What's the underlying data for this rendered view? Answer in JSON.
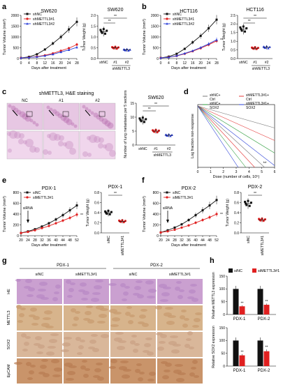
{
  "colors": {
    "black": "#111111",
    "red": "#e02020",
    "blue": "#2a3fd8",
    "heRow": "#b07ab8",
    "ihcRow": "#b0743c"
  },
  "panels": {
    "a": {
      "letter": "a",
      "title_line": "SW620",
      "title_bar": "SW620",
      "ylabel_line": "Tumor Volume (mm³)",
      "ylabel_bar": "Tumor Weight (g)",
      "xlabel": "Days after treatment",
      "xticks": [
        "0",
        "4",
        "8",
        "12",
        "16",
        "20",
        "24",
        "28"
      ],
      "yticks": [
        "0",
        "500",
        "1000",
        "1500",
        "2000"
      ],
      "bar_yticks": [
        "0.0",
        "0.5",
        "1.0",
        "1.5",
        "2.0"
      ],
      "legend": [
        "shNC",
        "shMETTL3#1",
        "shMETTL3#2"
      ],
      "bar_cats": [
        "shNC",
        "#1",
        "#2"
      ],
      "bar_group": "shMETTL3",
      "sig": "**"
    },
    "b": {
      "letter": "b",
      "title_line": "HCT116",
      "title_bar": "HCT116",
      "ylabel_line": "Tumor Volume (mm³)",
      "ylabel_bar": "Tumor Weight (g)",
      "xlabel": "Days after treatment",
      "xticks": [
        "0",
        "4",
        "8",
        "12",
        "16",
        "20",
        "24",
        "28"
      ],
      "yticks": [
        "0",
        "500",
        "1000",
        "1500",
        "2000"
      ],
      "bar_yticks": [
        "0.0",
        "0.5",
        "1.0",
        "1.5",
        "2.0",
        "2.5"
      ],
      "legend": [
        "shNC",
        "shMETTL3#1",
        "shMETTL3#2"
      ],
      "bar_cats": [
        "shNC",
        "#1",
        "#2"
      ],
      "bar_group": "shMETTL3",
      "sig": "**"
    },
    "c": {
      "letter": "c",
      "title": "shMETTL3, H&E staining",
      "cols": [
        "NC",
        "#1",
        "#2"
      ],
      "title_bar": "SW620",
      "ylabel": "Number of lung metastases per 5 sections",
      "bar_yticks": [
        "0",
        "5",
        "10",
        "15"
      ],
      "bar_cats": [
        "shNC",
        "#1",
        "#2"
      ],
      "bar_group": "shMETTL3",
      "sig": "**"
    },
    "d": {
      "letter": "d",
      "legend": [
        "shNC+ Ctrl",
        "shMETTL3#1+ Ctrl",
        "shNC+ SOX2",
        "shMETTL3#1+ SOX2"
      ],
      "ylabel": "Log fraction non-response",
      "xlabel": "Dose (number of cells, 10⁵)",
      "xticks": [
        "0",
        "1",
        "2",
        "3",
        "4",
        "5",
        "6"
      ],
      "sig": "**"
    },
    "e": {
      "letter": "e",
      "title_line": "PDX-1",
      "title_bar": "PDX-1",
      "legend": [
        "siNC",
        "siMETTL3#1"
      ],
      "ylabel_line": "Tumor Volume (mm³)",
      "ylabel_bar": "Tumor Weight (g)",
      "xlabel": "Days after treatment",
      "xticks": [
        "20",
        "24",
        "28",
        "32",
        "36",
        "40",
        "44",
        "48",
        "52"
      ],
      "yticks": [
        "0",
        "200",
        "400",
        "600",
        "800"
      ],
      "bar_yticks": [
        "0.0",
        "0.2",
        "0.4",
        "0.6",
        "0.8"
      ],
      "arrow": "siRNA",
      "bar_cats": [
        "siNC",
        "siMETTL3#1"
      ],
      "sig": "**"
    },
    "f": {
      "letter": "f",
      "title_line": "PDX-2",
      "title_bar": "PDX-2",
      "legend": [
        "siNC",
        "siMETTL3#1"
      ],
      "ylabel_line": "Tumor Volume (mm³)",
      "ylabel_bar": "Tumor Weight (g)",
      "xlabel": "Days after treatment",
      "xticks": [
        "20",
        "24",
        "28",
        "32",
        "36",
        "40",
        "44",
        "48",
        "52"
      ],
      "yticks": [
        "0",
        "200",
        "400",
        "600",
        "800"
      ],
      "bar_yticks": [
        "0.0",
        "0.2",
        "0.4",
        "0.6",
        "0.8"
      ],
      "arrow": "siRNA",
      "bar_cats": [
        "siNC",
        "siMETTL3#1"
      ],
      "sig": "**"
    },
    "g": {
      "letter": "g",
      "groups": [
        "PDX-1",
        "PDX-2"
      ],
      "cols": [
        "siNC",
        "siMETTL3#1",
        "siNC",
        "siMETTL3#1"
      ],
      "rows": [
        "HE",
        "METTL3",
        "SOX2",
        "EpCAM"
      ]
    },
    "h": {
      "letter": "h",
      "legend": [
        "siNC",
        "siMETTL3#1"
      ],
      "ylabel_top": "Relative METTL3 expression",
      "ylabel_bottom": "Relative SOX2 expression",
      "cats": [
        "PDX-1",
        "PDX-2"
      ],
      "yticks": [
        "0",
        "50",
        "100",
        "150"
      ],
      "sig": "**"
    }
  },
  "chart_data": [
    {
      "panel": "a",
      "type": "line",
      "title": "SW620",
      "xlabel": "Days after treatment",
      "ylabel": "Tumor Volume (mm³)",
      "x": [
        0,
        4,
        8,
        12,
        16,
        20,
        24,
        28
      ],
      "ylim": [
        0,
        2000
      ],
      "series": [
        {
          "name": "shNC",
          "values": [
            30,
            80,
            200,
            420,
            700,
            1000,
            1350,
            1700
          ]
        },
        {
          "name": "shMETTL3#1",
          "values": [
            30,
            50,
            90,
            150,
            240,
            360,
            480,
            650
          ]
        },
        {
          "name": "shMETTL3#2",
          "values": [
            30,
            50,
            80,
            130,
            200,
            300,
            400,
            520
          ]
        }
      ]
    },
    {
      "panel": "a",
      "type": "scatter",
      "title": "SW620",
      "ylabel": "Tumor Weight (g)",
      "categories": [
        "shNC",
        "#1",
        "#2"
      ],
      "ylim": [
        0,
        2
      ],
      "values": [
        1.25,
        0.5,
        0.4
      ]
    },
    {
      "panel": "b",
      "type": "line",
      "title": "HCT116",
      "xlabel": "Days after treatment",
      "ylabel": "Tumor Volume (mm³)",
      "x": [
        0,
        4,
        8,
        12,
        16,
        20,
        24,
        28
      ],
      "ylim": [
        0,
        2000
      ],
      "series": [
        {
          "name": "shNC",
          "values": [
            30,
            90,
            220,
            450,
            750,
            1050,
            1400,
            1800
          ]
        },
        {
          "name": "shMETTL3#1",
          "values": [
            30,
            60,
            120,
            220,
            340,
            480,
            640,
            820
          ]
        },
        {
          "name": "shMETTL3#2",
          "values": [
            30,
            60,
            130,
            240,
            360,
            510,
            680,
            870
          ]
        }
      ]
    },
    {
      "panel": "b",
      "type": "scatter",
      "title": "HCT116",
      "ylabel": "Tumor Weight (g)",
      "categories": [
        "shNC",
        "#1",
        "#2"
      ],
      "ylim": [
        0,
        2.5
      ],
      "values": [
        1.7,
        0.6,
        0.65
      ]
    },
    {
      "panel": "c",
      "type": "scatter",
      "title": "SW620",
      "ylabel": "Number of lung metastases per 5 sections",
      "categories": [
        "shNC",
        "#1",
        "#2"
      ],
      "ylim": [
        0,
        15
      ],
      "values": [
        9,
        5,
        3.5
      ]
    },
    {
      "panel": "e",
      "type": "line",
      "title": "PDX-1",
      "xlabel": "Days after treatment",
      "ylabel": "Tumor Volume (mm³)",
      "x": [
        20,
        24,
        28,
        32,
        36,
        40,
        44,
        48,
        52
      ],
      "ylim": [
        0,
        800
      ],
      "series": [
        {
          "name": "siNC",
          "values": [
            50,
            80,
            120,
            170,
            230,
            300,
            380,
            470,
            560
          ]
        },
        {
          "name": "siMETTL3#1",
          "values": [
            50,
            70,
            100,
            140,
            180,
            230,
            280,
            330,
            390
          ]
        }
      ]
    },
    {
      "panel": "e",
      "type": "scatter",
      "title": "PDX-1",
      "ylabel": "Tumor Weight (g)",
      "categories": [
        "siNC",
        "siMETTL3#1"
      ],
      "ylim": [
        0,
        0.8
      ],
      "values": [
        0.4,
        0.23
      ]
    },
    {
      "panel": "f",
      "type": "line",
      "title": "PDX-2",
      "xlabel": "Days after treatment",
      "ylabel": "Tumor Volume (mm³)",
      "x": [
        20,
        24,
        28,
        32,
        36,
        40,
        44,
        48,
        52
      ],
      "ylim": [
        0,
        800
      ],
      "series": [
        {
          "name": "siNC",
          "values": [
            60,
            100,
            150,
            210,
            290,
            380,
            470,
            560,
            660
          ]
        },
        {
          "name": "siMETTL3#1",
          "values": [
            60,
            80,
            110,
            150,
            190,
            240,
            290,
            340,
            400
          ]
        }
      ]
    },
    {
      "panel": "f",
      "type": "scatter",
      "title": "PDX-2",
      "ylabel": "Tumor Weight (g)",
      "categories": [
        "siNC",
        "siMETTL3#1"
      ],
      "ylim": [
        0,
        0.8
      ],
      "values": [
        0.58,
        0.26
      ]
    },
    {
      "panel": "h",
      "type": "bar",
      "ylabel": "Relative METTL3 expression",
      "categories": [
        "PDX-1",
        "PDX-2"
      ],
      "ylim": [
        0,
        150
      ],
      "series": [
        {
          "name": "siNC",
          "values": [
            100,
            100
          ]
        },
        {
          "name": "siMETTL3#1",
          "values": [
            32,
            38
          ]
        }
      ]
    },
    {
      "panel": "h",
      "type": "bar",
      "ylabel": "Relative SOX2 expression",
      "categories": [
        "PDX-1",
        "PDX-2"
      ],
      "ylim": [
        0,
        150
      ],
      "series": [
        {
          "name": "siNC",
          "values": [
            100,
            100
          ]
        },
        {
          "name": "siMETTL3#1",
          "values": [
            42,
            58
          ]
        }
      ]
    }
  ]
}
